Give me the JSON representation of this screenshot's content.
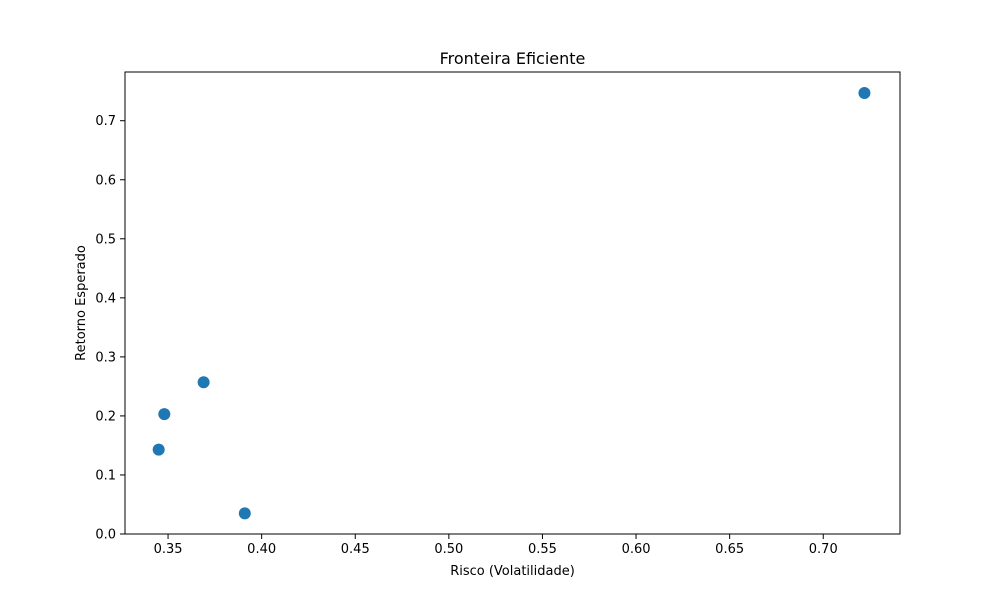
{
  "chart_data": {
    "type": "scatter",
    "title": "Fronteira Eficiente",
    "xlabel": "Risco (Volatilidade)",
    "ylabel": "Retorno Esperado",
    "xlim": [
      0.327,
      0.741
    ],
    "ylim": [
      0.0,
      0.7825
    ],
    "xticks": [
      0.35,
      0.4,
      0.45,
      0.5,
      0.55,
      0.6,
      0.65,
      0.7
    ],
    "xtick_labels": [
      "0.35",
      "0.40",
      "0.45",
      "0.50",
      "0.55",
      "0.60",
      "0.65",
      "0.70"
    ],
    "yticks": [
      0.0,
      0.1,
      0.2,
      0.3,
      0.4,
      0.5,
      0.6,
      0.7
    ],
    "ytick_labels": [
      "0.0",
      "0.1",
      "0.2",
      "0.3",
      "0.4",
      "0.5",
      "0.6",
      "0.7"
    ],
    "grid": false,
    "series": [
      {
        "color": "#1f77b4",
        "points": [
          {
            "x": 0.345,
            "y": 0.143
          },
          {
            "x": 0.348,
            "y": 0.203
          },
          {
            "x": 0.369,
            "y": 0.257
          },
          {
            "x": 0.391,
            "y": 0.035
          },
          {
            "x": 0.722,
            "y": 0.747
          }
        ]
      }
    ]
  }
}
